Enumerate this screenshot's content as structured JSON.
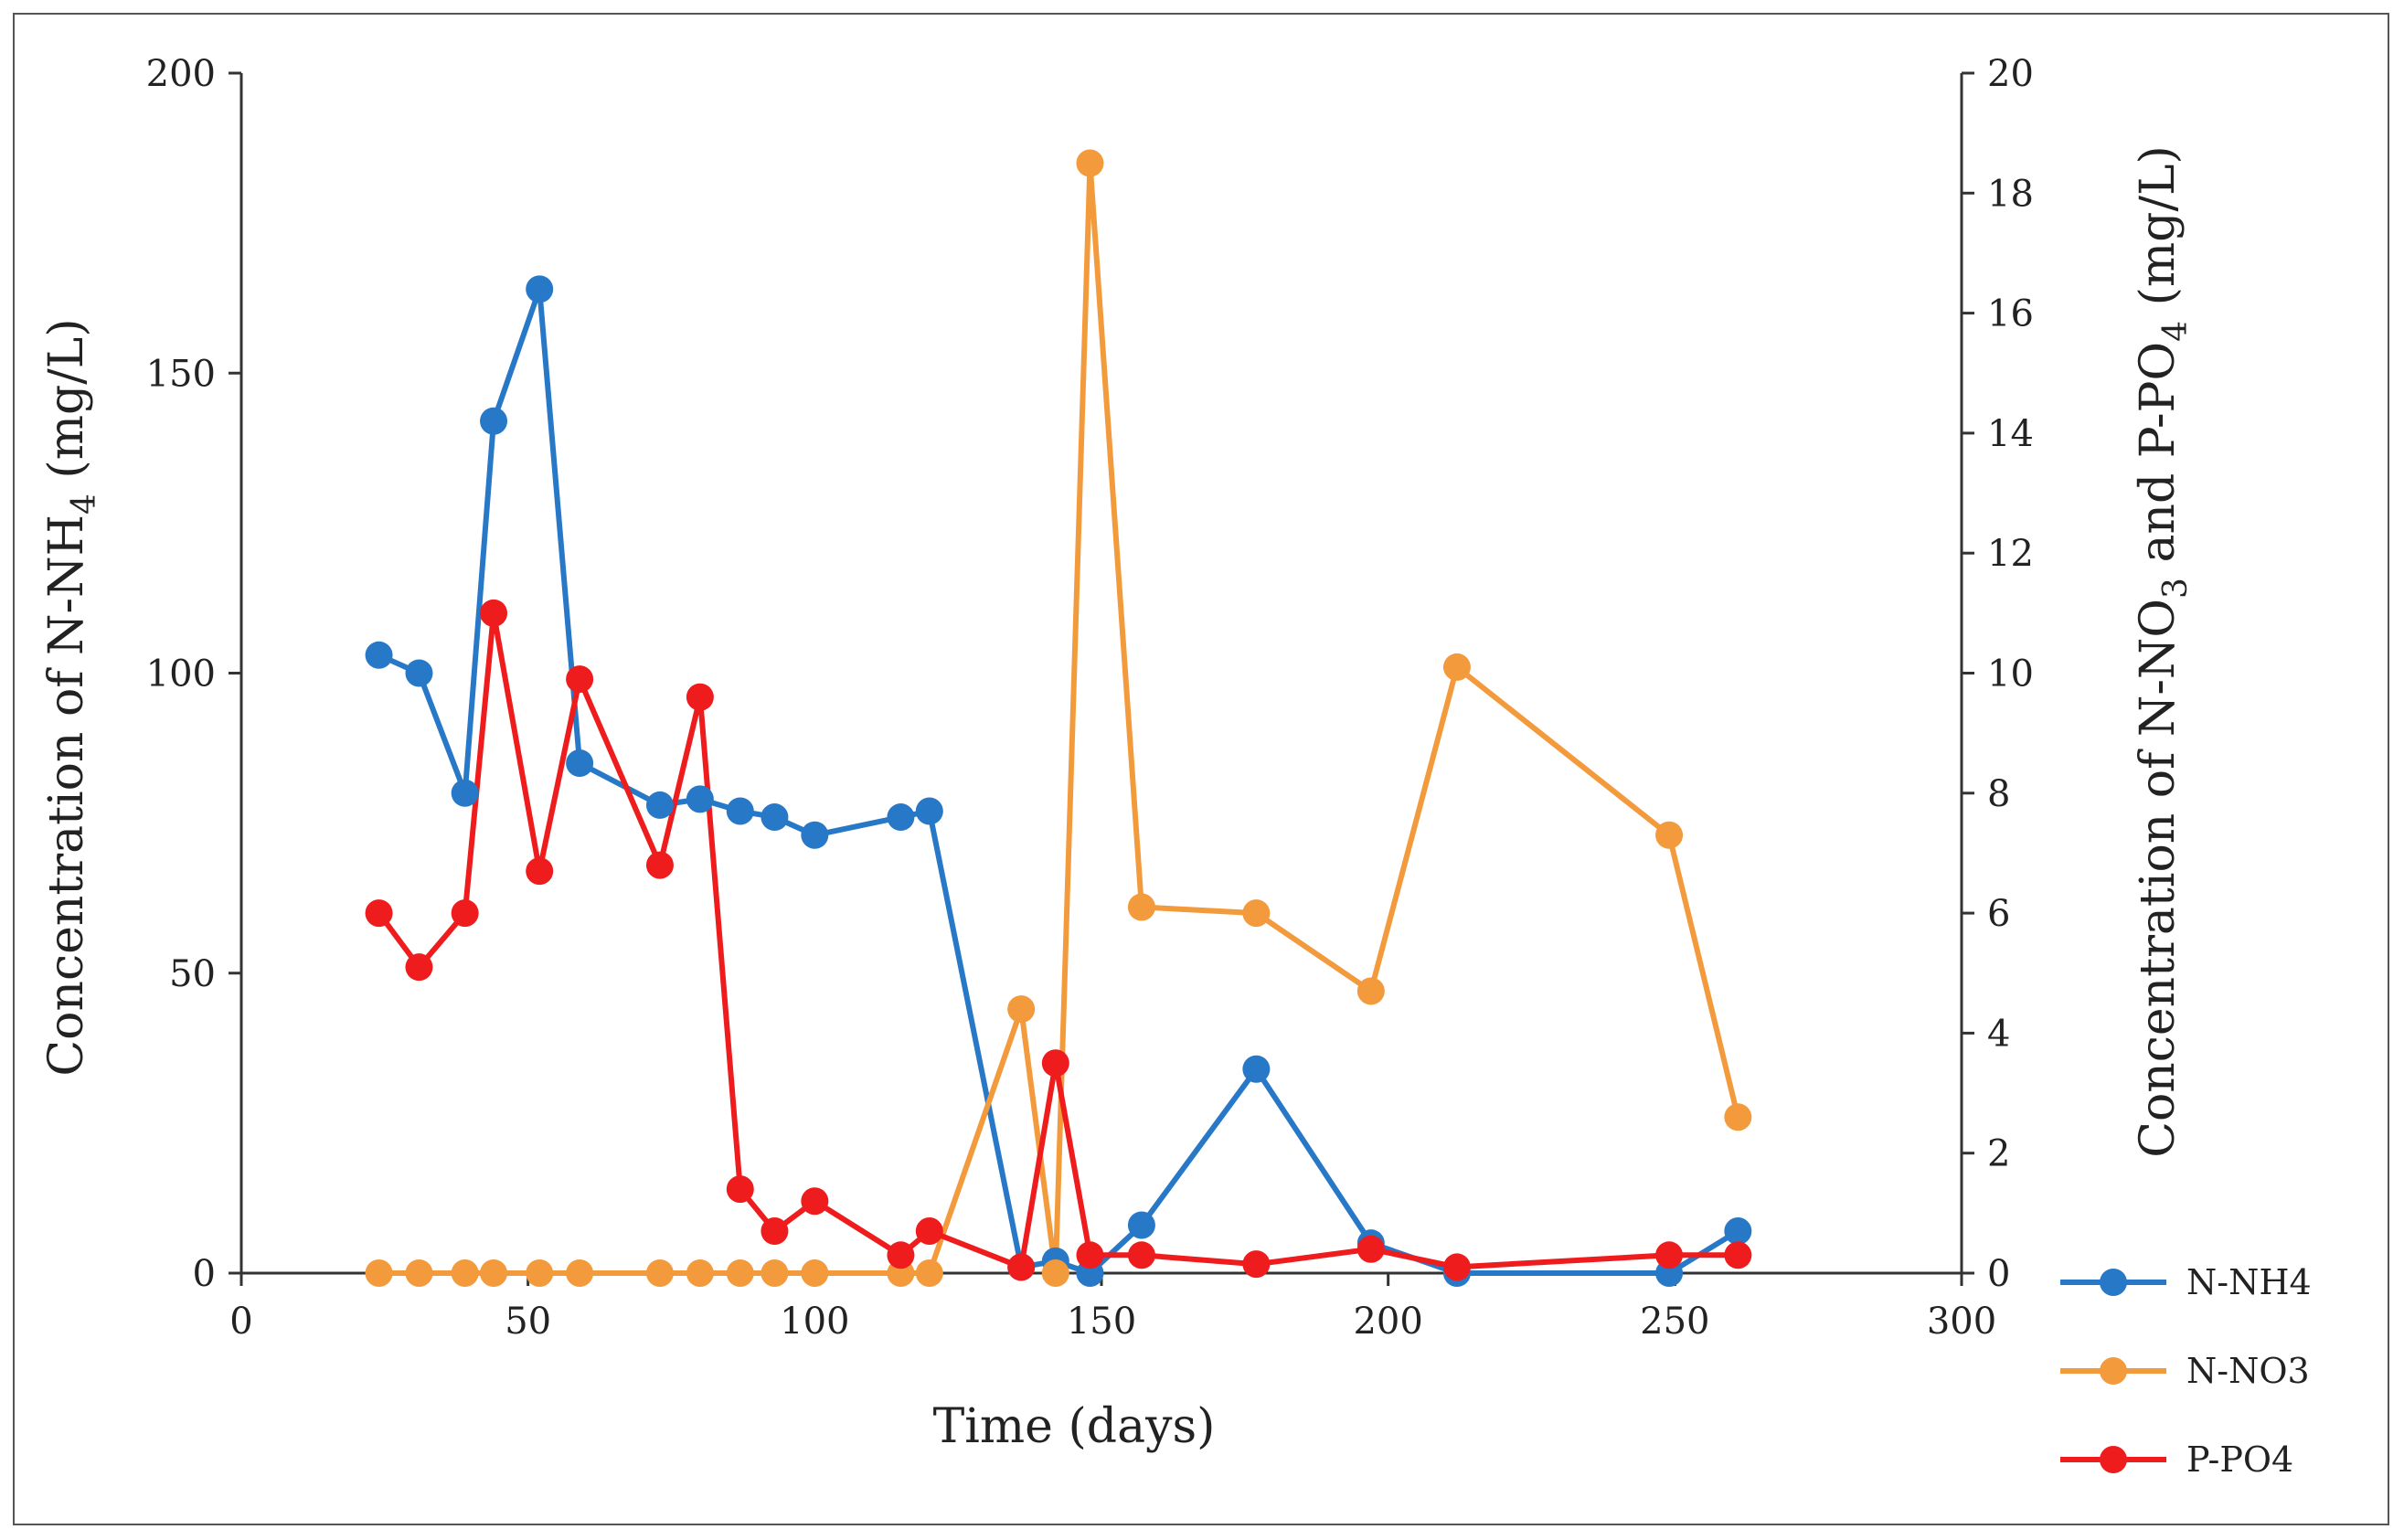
{
  "chart_data": {
    "type": "line",
    "title": "",
    "xlabel": "Time (days)",
    "ylabel_left": {
      "prefix": "Concentration of N-NH",
      "sub": "4",
      "suffix": " (mg/L)"
    },
    "ylabel_right": {
      "prefix": "Concentration of N-NO",
      "sub1": "3",
      "middle": " and P-PO",
      "sub2": "4",
      "suffix": " (mg/L)"
    },
    "xlim": [
      0,
      300
    ],
    "ylim_left": [
      0,
      200
    ],
    "ylim_right": [
      0,
      20
    ],
    "x_ticks": [
      "0",
      "50",
      "100",
      "150",
      "200",
      "250",
      "300"
    ],
    "y_left_ticks": [
      "0",
      "50",
      "100",
      "150",
      "200"
    ],
    "y_right_ticks": [
      "0",
      "2",
      "4",
      "6",
      "8",
      "10",
      "12",
      "14",
      "16",
      "18",
      "20"
    ],
    "series": [
      {
        "name": "N-NH4",
        "axis": "left",
        "color": "#2878c8",
        "points": [
          [
            24,
            103
          ],
          [
            31,
            100
          ],
          [
            39,
            80
          ],
          [
            44,
            142
          ],
          [
            52,
            164
          ],
          [
            59,
            85
          ],
          [
            73,
            78
          ],
          [
            80,
            79
          ],
          [
            87,
            77
          ],
          [
            93,
            76
          ],
          [
            100,
            73
          ],
          [
            115,
            76
          ],
          [
            120,
            77
          ],
          [
            136,
            1
          ],
          [
            142,
            2
          ],
          [
            148,
            0
          ],
          [
            157,
            8
          ],
          [
            177,
            34
          ],
          [
            197,
            5
          ],
          [
            212,
            0
          ],
          [
            249,
            0
          ],
          [
            261,
            7
          ]
        ]
      },
      {
        "name": "N-NO3",
        "axis": "right",
        "color": "#f39a3c",
        "points": [
          [
            24,
            0
          ],
          [
            31,
            0
          ],
          [
            39,
            0
          ],
          [
            44,
            0
          ],
          [
            52,
            0
          ],
          [
            59,
            0
          ],
          [
            73,
            0
          ],
          [
            80,
            0
          ],
          [
            87,
            0
          ],
          [
            93,
            0
          ],
          [
            100,
            0
          ],
          [
            115,
            0
          ],
          [
            120,
            0
          ],
          [
            136,
            4.4
          ],
          [
            142,
            0
          ],
          [
            148,
            18.5
          ],
          [
            157,
            6.1
          ],
          [
            177,
            6.0
          ],
          [
            197,
            4.7
          ],
          [
            212,
            10.1
          ],
          [
            249,
            7.3
          ],
          [
            261,
            2.6
          ]
        ]
      },
      {
        "name": "P-PO4",
        "axis": "right",
        "color": "#ee1c1c",
        "points": [
          [
            24,
            6.0
          ],
          [
            31,
            5.1
          ],
          [
            39,
            6.0
          ],
          [
            44,
            11.0
          ],
          [
            52,
            6.7
          ],
          [
            59,
            9.9
          ],
          [
            73,
            6.8
          ],
          [
            80,
            9.6
          ],
          [
            87,
            1.4
          ],
          [
            93,
            0.7
          ],
          [
            100,
            1.2
          ],
          [
            115,
            0.3
          ],
          [
            120,
            0.7
          ],
          [
            136,
            0.1
          ],
          [
            142,
            3.5
          ],
          [
            148,
            0.3
          ],
          [
            157,
            0.3
          ],
          [
            177,
            0.15
          ],
          [
            197,
            0.4
          ],
          [
            212,
            0.1
          ],
          [
            249,
            0.3
          ],
          [
            261,
            0.3
          ]
        ]
      }
    ],
    "legend": [
      "N-NH4",
      "N-NO3",
      "P-PO4"
    ],
    "legend_position": "right"
  }
}
